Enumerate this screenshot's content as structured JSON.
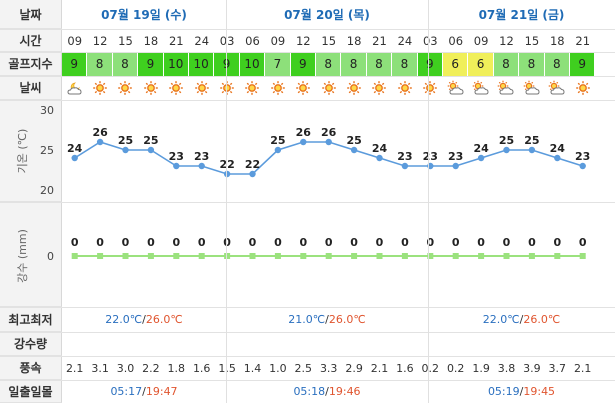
{
  "labels": {
    "date": "날짜",
    "time": "시간",
    "golf": "골프지수",
    "weather": "날씨",
    "temp_axis": "기온 (℃)",
    "rain_axis": "강수 (mm)",
    "minmax": "최고최저",
    "precip": "강수량",
    "wind": "풍속",
    "sun": "일출일몰"
  },
  "days": [
    {
      "date": "07월 19일 (수)",
      "min": "22.0℃",
      "sep": "/",
      "max": "26.0℃",
      "sunrise": "05:17",
      "sunset": "19:47"
    },
    {
      "date": "07월 20일 (목)",
      "min": "21.0℃",
      "sep": "/",
      "max": "26.0℃",
      "sunrise": "05:18",
      "sunset": "19:46"
    },
    {
      "date": "07월 21일 (금)",
      "min": "22.0℃",
      "sep": "/",
      "max": "26.0℃",
      "sunrise": "05:19",
      "sunset": "19:45"
    }
  ],
  "hours": [
    "09",
    "12",
    "15",
    "18",
    "21",
    "24",
    "03",
    "06",
    "09",
    "12",
    "15",
    "18",
    "21",
    "24",
    "03",
    "06",
    "09",
    "12",
    "15",
    "18",
    "21"
  ],
  "golf_index": [
    9,
    8,
    8,
    9,
    10,
    10,
    9,
    10,
    7,
    9,
    8,
    8,
    8,
    8,
    9,
    6,
    6,
    8,
    8,
    8,
    9
  ],
  "weather": [
    "partly-cloudy-night-icon",
    "sun-icon",
    "sun-icon",
    "sun-icon",
    "sun-icon",
    "sun-icon",
    "sun-icon",
    "sun-icon",
    "sun-icon",
    "sun-icon",
    "sun-icon",
    "sun-icon",
    "sun-icon",
    "sun-icon",
    "sun-icon",
    "partly-cloudy-icon",
    "partly-cloudy-icon",
    "partly-cloudy-icon",
    "partly-cloudy-icon",
    "partly-cloudy-icon",
    "sun-icon"
  ],
  "colors": {
    "golf_high": "#3fcf1f",
    "golf_mid": "#8de07a",
    "golf_low": "#f0ef5a",
    "line": "#5b9bdc",
    "rain_line": "#9be27e",
    "header_text": "#1f6bb5"
  },
  "wind": [
    "2.1",
    "3.1",
    "3.0",
    "2.2",
    "1.8",
    "1.6",
    "1.5",
    "1.4",
    "1.0",
    "2.5",
    "3.3",
    "2.9",
    "2.1",
    "1.6",
    "0.2",
    "0.2",
    "1.9",
    "3.8",
    "3.9",
    "3.7",
    "2.1"
  ],
  "chart_data": [
    {
      "type": "line",
      "ylabel": "기온 (℃)",
      "yticks": [
        20,
        25,
        30
      ],
      "ylim": [
        20,
        30
      ],
      "x": [
        "09",
        "12",
        "15",
        "18",
        "21",
        "24",
        "03",
        "06",
        "09",
        "12",
        "15",
        "18",
        "21",
        "24",
        "03",
        "06",
        "09",
        "12",
        "15",
        "18",
        "21"
      ],
      "values": [
        24,
        26,
        25,
        25,
        23,
        23,
        22,
        22,
        25,
        26,
        26,
        25,
        24,
        23,
        23,
        23,
        24,
        25,
        25,
        24,
        23
      ]
    },
    {
      "type": "line",
      "ylabel": "강수 (mm)",
      "yticks": [
        0
      ],
      "x": [
        "09",
        "12",
        "15",
        "18",
        "21",
        "24",
        "03",
        "06",
        "09",
        "12",
        "15",
        "18",
        "21",
        "24",
        "03",
        "06",
        "09",
        "12",
        "15",
        "18",
        "21"
      ],
      "values": [
        0,
        0,
        0,
        0,
        0,
        0,
        0,
        0,
        0,
        0,
        0,
        0,
        0,
        0,
        0,
        0,
        0,
        0,
        0,
        0,
        0
      ]
    }
  ]
}
